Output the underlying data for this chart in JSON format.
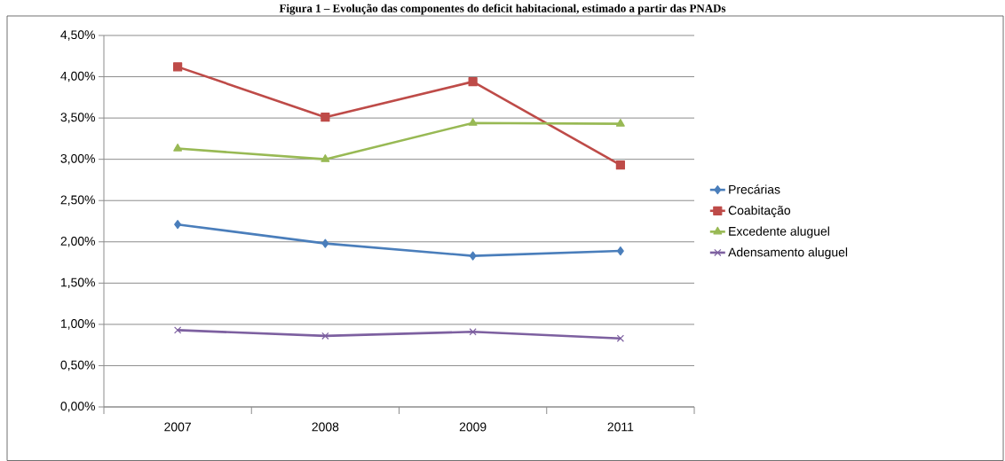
{
  "chart_data": {
    "type": "line",
    "title": "Figura 1 – Evolução das componentes do deficit habitacional, estimado a partir das PNADs",
    "categories": [
      "2007",
      "2008",
      "2009",
      "2011"
    ],
    "series": [
      {
        "name": "Precárias",
        "color": "#4a7ebb",
        "marker": "diamond",
        "values": [
          2.21,
          1.98,
          1.83,
          1.89
        ]
      },
      {
        "name": "Coabitação",
        "color": "#be4b48",
        "marker": "square",
        "values": [
          4.12,
          3.51,
          3.94,
          2.93
        ]
      },
      {
        "name": "Excedente aluguel",
        "color": "#98b954",
        "marker": "triangle",
        "values": [
          3.13,
          3.0,
          3.44,
          3.43
        ]
      },
      {
        "name": "Adensamento aluguel",
        "color": "#7d60a0",
        "marker": "cross",
        "values": [
          0.93,
          0.86,
          0.91,
          0.83
        ]
      }
    ],
    "ylim": [
      0,
      4.5
    ],
    "yticks": [
      {
        "value": 0,
        "label": "0,00%"
      },
      {
        "value": 0.5,
        "label": "0,50%"
      },
      {
        "value": 1,
        "label": "1,00%"
      },
      {
        "value": 1.5,
        "label": "1,50%"
      },
      {
        "value": 2,
        "label": "2,00%"
      },
      {
        "value": 2.5,
        "label": "2,50%"
      },
      {
        "value": 3,
        "label": "3,00%"
      },
      {
        "value": 3.5,
        "label": "3,50%"
      },
      {
        "value": 4,
        "label": "4,00%"
      },
      {
        "value": 4.5,
        "label": "4,50%"
      }
    ],
    "grid": "y",
    "legend": "right",
    "line_style": "solid"
  }
}
